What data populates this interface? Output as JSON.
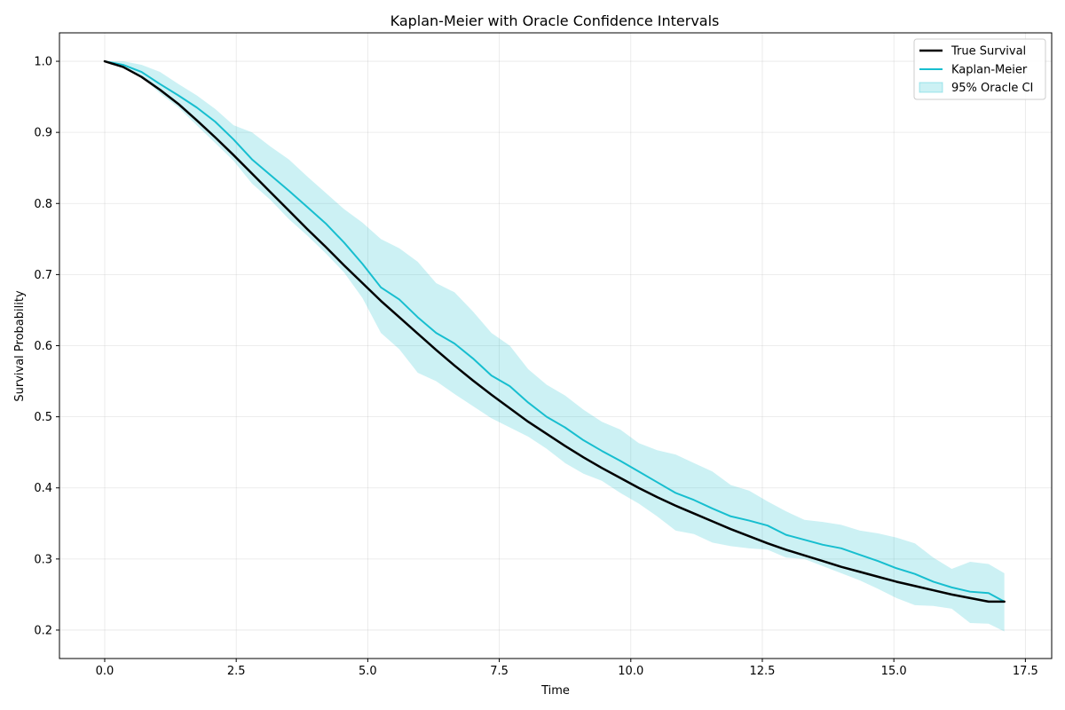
{
  "chart_data": {
    "type": "line",
    "title": "Kaplan-Meier with Oracle Confidence Intervals",
    "xlabel": "Time",
    "ylabel": "Survival Probability",
    "xlim": [
      -0.86,
      18.0
    ],
    "ylim": [
      0.16,
      1.04
    ],
    "xticks": [
      "0.0",
      "2.5",
      "5.0",
      "7.5",
      "10.0",
      "12.5",
      "15.0",
      "17.5"
    ],
    "yticks": [
      "0.2",
      "0.3",
      "0.4",
      "0.5",
      "0.6",
      "0.7",
      "0.8",
      "0.9",
      "1.0"
    ],
    "grid": true,
    "legend_position": "upper right",
    "series": [
      {
        "name": "True Survival",
        "kind": "line",
        "color": "#000000",
        "x": [
          0.0,
          0.35,
          0.7,
          1.05,
          1.4,
          1.75,
          2.1,
          2.45,
          2.8,
          3.15,
          3.5,
          3.85,
          4.2,
          4.55,
          4.9,
          5.25,
          5.6,
          5.95,
          6.3,
          6.65,
          7.0,
          7.35,
          7.7,
          8.05,
          8.4,
          8.75,
          9.1,
          9.45,
          9.8,
          10.15,
          10.5,
          10.85,
          11.2,
          11.55,
          11.9,
          12.25,
          12.6,
          12.95,
          13.3,
          13.65,
          14.0,
          14.35,
          14.7,
          15.05,
          15.4,
          15.75,
          16.1,
          16.45,
          16.8,
          17.1
        ],
        "y": [
          1.0,
          0.992,
          0.978,
          0.96,
          0.94,
          0.917,
          0.893,
          0.868,
          0.842,
          0.816,
          0.79,
          0.764,
          0.739,
          0.713,
          0.688,
          0.663,
          0.64,
          0.617,
          0.594,
          0.572,
          0.551,
          0.531,
          0.512,
          0.493,
          0.476,
          0.459,
          0.443,
          0.428,
          0.414,
          0.4,
          0.387,
          0.375,
          0.364,
          0.353,
          0.342,
          0.332,
          0.322,
          0.313,
          0.305,
          0.297,
          0.289,
          0.282,
          0.275,
          0.268,
          0.262,
          0.256,
          0.25,
          0.245,
          0.24,
          0.24
        ]
      },
      {
        "name": "Kaplan-Meier",
        "kind": "line",
        "color": "#17becf",
        "x": [
          0.0,
          0.35,
          0.7,
          1.05,
          1.4,
          1.75,
          2.1,
          2.45,
          2.8,
          3.15,
          3.5,
          3.85,
          4.2,
          4.55,
          4.9,
          5.25,
          5.6,
          5.95,
          6.3,
          6.65,
          7.0,
          7.35,
          7.7,
          8.05,
          8.4,
          8.75,
          9.1,
          9.45,
          9.8,
          10.15,
          10.5,
          10.85,
          11.2,
          11.55,
          11.9,
          12.25,
          12.6,
          12.95,
          13.3,
          13.65,
          14.0,
          14.35,
          14.7,
          15.05,
          15.4,
          15.75,
          16.1,
          16.45,
          16.8,
          17.1
        ],
        "y": [
          1.0,
          0.995,
          0.985,
          0.968,
          0.952,
          0.935,
          0.915,
          0.89,
          0.862,
          0.84,
          0.818,
          0.795,
          0.772,
          0.745,
          0.715,
          0.682,
          0.665,
          0.64,
          0.618,
          0.603,
          0.582,
          0.558,
          0.543,
          0.52,
          0.5,
          0.485,
          0.467,
          0.452,
          0.438,
          0.423,
          0.408,
          0.393,
          0.383,
          0.371,
          0.36,
          0.354,
          0.347,
          0.334,
          0.327,
          0.32,
          0.315,
          0.306,
          0.297,
          0.287,
          0.279,
          0.268,
          0.26,
          0.254,
          0.252,
          0.24
        ]
      },
      {
        "name": "95% Oracle CI",
        "kind": "band",
        "color": "#17becf",
        "opacity": 0.22,
        "x": [
          0.0,
          0.35,
          0.7,
          1.05,
          1.4,
          1.75,
          2.1,
          2.45,
          2.8,
          3.15,
          3.5,
          3.85,
          4.2,
          4.55,
          4.9,
          5.25,
          5.6,
          5.95,
          6.3,
          6.65,
          7.0,
          7.35,
          7.7,
          8.05,
          8.4,
          8.75,
          9.1,
          9.45,
          9.8,
          10.15,
          10.5,
          10.85,
          11.2,
          11.55,
          11.9,
          12.25,
          12.6,
          12.95,
          13.3,
          13.65,
          14.0,
          14.35,
          14.7,
          15.05,
          15.4,
          15.75,
          16.1,
          16.45,
          16.8,
          17.1
        ],
        "lower": [
          1.0,
          0.99,
          0.978,
          0.955,
          0.935,
          0.91,
          0.885,
          0.86,
          0.828,
          0.805,
          0.778,
          0.755,
          0.73,
          0.703,
          0.667,
          0.618,
          0.595,
          0.562,
          0.55,
          0.532,
          0.515,
          0.498,
          0.485,
          0.472,
          0.455,
          0.435,
          0.42,
          0.41,
          0.393,
          0.378,
          0.36,
          0.34,
          0.335,
          0.323,
          0.318,
          0.315,
          0.313,
          0.302,
          0.3,
          0.29,
          0.28,
          0.27,
          0.258,
          0.245,
          0.235,
          0.234,
          0.23,
          0.21,
          0.209,
          0.198
        ],
        "upper": [
          1.0,
          1.0,
          0.995,
          0.985,
          0.968,
          0.952,
          0.933,
          0.91,
          0.9,
          0.88,
          0.862,
          0.838,
          0.815,
          0.792,
          0.773,
          0.75,
          0.737,
          0.718,
          0.688,
          0.675,
          0.648,
          0.618,
          0.6,
          0.567,
          0.545,
          0.53,
          0.51,
          0.493,
          0.482,
          0.463,
          0.453,
          0.447,
          0.435,
          0.423,
          0.404,
          0.396,
          0.381,
          0.367,
          0.355,
          0.352,
          0.348,
          0.34,
          0.336,
          0.33,
          0.322,
          0.302,
          0.286,
          0.296,
          0.293,
          0.28
        ]
      }
    ]
  }
}
